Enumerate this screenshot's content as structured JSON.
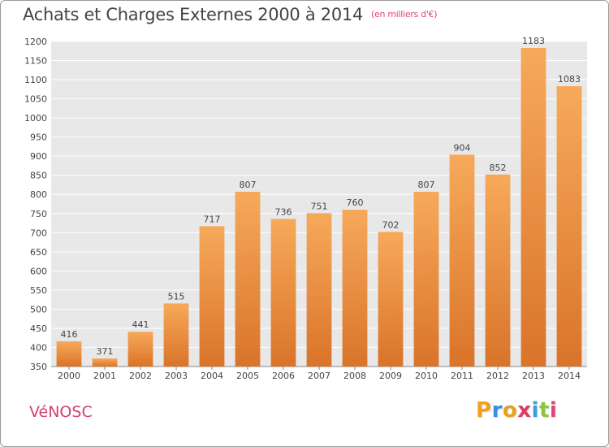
{
  "title": "Achats et Charges Externes 2000 à 2014",
  "unit_label": "(en milliers d'€)",
  "commune": "VéNOSC",
  "brand": {
    "letters": [
      "P",
      "r",
      "o",
      "x",
      "i",
      "t",
      "i"
    ],
    "colors": [
      "#f0a020",
      "#3a8ee0",
      "#e8a020",
      "#e03a6a",
      "#3a9ee0",
      "#8cc63f",
      "#e0457b"
    ]
  },
  "colors": {
    "bar_light": "#f7a95a",
    "bar_dark": "#d9742a",
    "plot_bg": "#e8e8e8",
    "grid": "#ffffff",
    "text": "#444444"
  },
  "chart_data": {
    "type": "bar",
    "categories": [
      "2000",
      "2001",
      "2002",
      "2003",
      "2004",
      "2005",
      "2006",
      "2007",
      "2008",
      "2009",
      "2010",
      "2011",
      "2012",
      "2013",
      "2014"
    ],
    "values": [
      416,
      371,
      441,
      515,
      717,
      807,
      736,
      751,
      760,
      702,
      807,
      904,
      852,
      1183,
      1083
    ],
    "ylim": [
      350,
      1200
    ],
    "yticks": [
      350,
      400,
      450,
      500,
      550,
      600,
      650,
      700,
      750,
      800,
      850,
      900,
      950,
      1000,
      1050,
      1100,
      1150,
      1200
    ],
    "grid": true,
    "legend": "none"
  }
}
